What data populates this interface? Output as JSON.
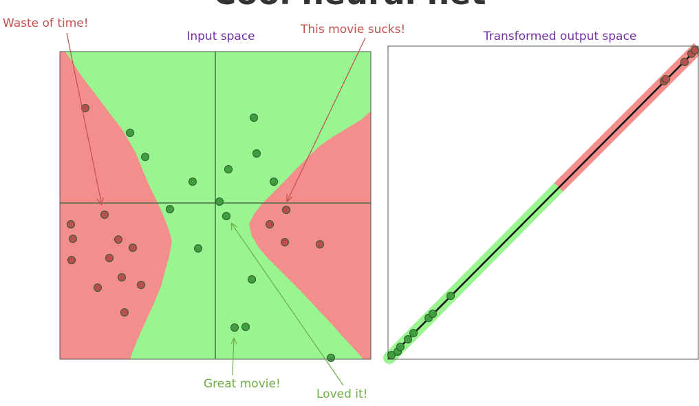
{
  "slide_title": "Cool neural net",
  "colors": {
    "positive_region": "#98f58f",
    "negative_region": "#f48e8c",
    "positive_point": "#3f9f3f",
    "negative_point": "#b84f4f",
    "point_edge": "#2d5a2d",
    "axis": "#4d6b4d",
    "frame": "#555555",
    "title_purple": "#7030a0",
    "annotation_red": "#c0504d",
    "annotation_green": "#70ad47"
  },
  "panels": {
    "input": {
      "title": "Input space"
    },
    "output": {
      "title": "Transformed output space"
    }
  },
  "annotations": {
    "waste": "Waste of time!",
    "sucks": "This movie sucks!",
    "great": "Great movie!",
    "loved": "Loved it!"
  },
  "input_points": {
    "positive": [
      [
        189,
        193
      ],
      [
        211,
        228
      ],
      [
        280,
        264
      ],
      [
        247,
        304
      ],
      [
        288,
        361
      ],
      [
        369,
        171
      ],
      [
        373,
        223
      ],
      [
        332,
        246
      ],
      [
        398,
        264
      ],
      [
        319,
        293
      ],
      [
        329,
        314
      ],
      [
        366,
        406
      ],
      [
        341,
        476
      ],
      [
        357,
        475
      ],
      [
        481,
        520
      ]
    ],
    "negative": [
      [
        124,
        157
      ],
      [
        152,
        312
      ],
      [
        103,
        326
      ],
      [
        106,
        347
      ],
      [
        104,
        378
      ],
      [
        159,
        375
      ],
      [
        172,
        348
      ],
      [
        193,
        360
      ],
      [
        177,
        403
      ],
      [
        142,
        418
      ],
      [
        205,
        414
      ],
      [
        181,
        454
      ],
      [
        416,
        305
      ],
      [
        392,
        326
      ],
      [
        414,
        352
      ],
      [
        465,
        355
      ]
    ]
  },
  "output_points": {
    "positive": [
      [
        569,
        516
      ],
      [
        578,
        511
      ],
      [
        582,
        504
      ],
      [
        593,
        493
      ],
      [
        601,
        484
      ],
      [
        623,
        462
      ],
      [
        629,
        456
      ],
      [
        655,
        430
      ]
    ],
    "negative": [
      [
        965,
        118
      ],
      [
        968,
        115
      ],
      [
        995,
        90
      ],
      [
        1005,
        78
      ],
      [
        1010,
        73
      ]
    ]
  }
}
